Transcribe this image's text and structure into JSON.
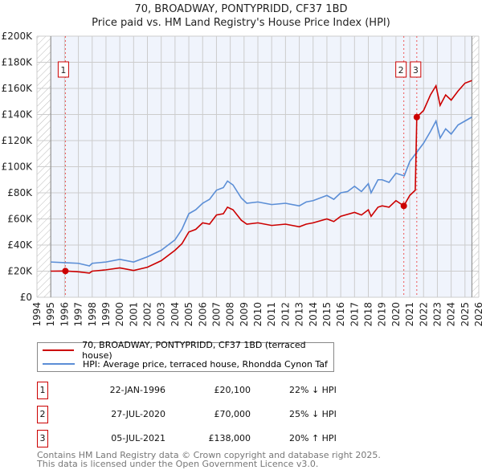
{
  "title": "70, BROADWAY, PONTYPRIDD, CF37 1BD",
  "subtitle": "Price paid vs. HM Land Registry's House Price Index (HPI)",
  "chart_data": {
    "type": "line",
    "xlim": [
      1994,
      2026
    ],
    "ylim": [
      0,
      200000
    ],
    "yticks": [
      {
        "v": 0,
        "label": "£0"
      },
      {
        "v": 20000,
        "label": "£20K"
      },
      {
        "v": 40000,
        "label": "£40K"
      },
      {
        "v": 60000,
        "label": "£60K"
      },
      {
        "v": 80000,
        "label": "£80K"
      },
      {
        "v": 100000,
        "label": "£100K"
      },
      {
        "v": 120000,
        "label": "£120K"
      },
      {
        "v": 140000,
        "label": "£140K"
      },
      {
        "v": 160000,
        "label": "£160K"
      },
      {
        "v": 180000,
        "label": "£180K"
      },
      {
        "v": 200000,
        "label": "£200K"
      }
    ],
    "xticks": [
      "1994",
      "1995",
      "1996",
      "1997",
      "1998",
      "1999",
      "2000",
      "2001",
      "2002",
      "2003",
      "2004",
      "2005",
      "2006",
      "2007",
      "2008",
      "2009",
      "2010",
      "2011",
      "2012",
      "2013",
      "2014",
      "2015",
      "2016",
      "2017",
      "2018",
      "2019",
      "2020",
      "2021",
      "2022",
      "2023",
      "2024",
      "2025",
      "2026"
    ],
    "series": [
      {
        "name": "70, BROADWAY, PONTYPRIDD, CF37 1BD (terraced house)",
        "color": "#cc0000",
        "points": [
          [
            1995,
            20000
          ],
          [
            1996.06,
            20100
          ],
          [
            1997,
            19500
          ],
          [
            1997.8,
            18500
          ],
          [
            1998,
            20000
          ],
          [
            1999,
            21000
          ],
          [
            2000,
            22500
          ],
          [
            2001,
            20500
          ],
          [
            2002,
            23000
          ],
          [
            2003,
            28000
          ],
          [
            2004,
            36000
          ],
          [
            2004.5,
            41000
          ],
          [
            2005,
            50000
          ],
          [
            2005.5,
            52000
          ],
          [
            2006,
            57000
          ],
          [
            2006.5,
            56000
          ],
          [
            2007,
            63000
          ],
          [
            2007.5,
            64000
          ],
          [
            2007.8,
            69000
          ],
          [
            2008.2,
            67000
          ],
          [
            2008.8,
            59000
          ],
          [
            2009.2,
            56000
          ],
          [
            2010,
            57000
          ],
          [
            2011,
            55000
          ],
          [
            2012,
            56000
          ],
          [
            2013,
            54000
          ],
          [
            2013.5,
            56000
          ],
          [
            2014,
            57000
          ],
          [
            2015,
            60000
          ],
          [
            2015.5,
            58000
          ],
          [
            2016,
            62000
          ],
          [
            2017,
            65000
          ],
          [
            2017.5,
            63000
          ],
          [
            2018,
            67000
          ],
          [
            2018.2,
            62000
          ],
          [
            2018.7,
            69000
          ],
          [
            2019,
            70000
          ],
          [
            2019.5,
            69000
          ],
          [
            2020,
            74000
          ],
          [
            2020.57,
            70000
          ],
          [
            2021,
            78000
          ],
          [
            2021.4,
            82000
          ],
          [
            2021.51,
            138000
          ],
          [
            2022,
            143000
          ],
          [
            2022.5,
            155000
          ],
          [
            2022.9,
            162000
          ],
          [
            2023.2,
            147000
          ],
          [
            2023.6,
            155000
          ],
          [
            2024,
            151000
          ],
          [
            2024.5,
            158000
          ],
          [
            2025,
            164000
          ],
          [
            2025.5,
            166000
          ]
        ]
      },
      {
        "name": "HPI: Average price, terraced house, Rhondda Cynon Taf",
        "color": "#5b8ed6",
        "points": [
          [
            1995,
            27000
          ],
          [
            1996,
            26500
          ],
          [
            1997,
            26000
          ],
          [
            1997.8,
            24000
          ],
          [
            1998,
            26000
          ],
          [
            1999,
            27000
          ],
          [
            2000,
            29000
          ],
          [
            2001,
            27000
          ],
          [
            2002,
            31000
          ],
          [
            2003,
            36000
          ],
          [
            2004,
            44000
          ],
          [
            2004.5,
            52000
          ],
          [
            2005,
            64000
          ],
          [
            2005.5,
            67000
          ],
          [
            2006,
            72000
          ],
          [
            2006.5,
            75000
          ],
          [
            2007,
            82000
          ],
          [
            2007.5,
            84000
          ],
          [
            2007.8,
            89000
          ],
          [
            2008.2,
            86000
          ],
          [
            2008.8,
            76000
          ],
          [
            2009.2,
            72000
          ],
          [
            2010,
            73000
          ],
          [
            2011,
            71000
          ],
          [
            2012,
            72000
          ],
          [
            2013,
            70000
          ],
          [
            2013.5,
            73000
          ],
          [
            2014,
            74000
          ],
          [
            2015,
            78000
          ],
          [
            2015.5,
            75000
          ],
          [
            2016,
            80000
          ],
          [
            2016.5,
            81000
          ],
          [
            2017,
            85000
          ],
          [
            2017.5,
            81000
          ],
          [
            2018,
            87000
          ],
          [
            2018.2,
            80000
          ],
          [
            2018.7,
            90000
          ],
          [
            2019,
            90000
          ],
          [
            2019.5,
            88000
          ],
          [
            2020,
            95000
          ],
          [
            2020.6,
            93000
          ],
          [
            2021,
            104000
          ],
          [
            2021.5,
            111000
          ],
          [
            2022,
            118000
          ],
          [
            2022.5,
            127000
          ],
          [
            2022.9,
            135000
          ],
          [
            2023.2,
            122000
          ],
          [
            2023.6,
            129000
          ],
          [
            2024,
            125000
          ],
          [
            2024.5,
            132000
          ],
          [
            2025,
            135000
          ],
          [
            2025.5,
            138000
          ]
        ]
      }
    ],
    "sales": [
      {
        "label": "1",
        "x": 1996.06,
        "y": 20100
      },
      {
        "label": "2",
        "x": 2020.57,
        "y": 70000
      },
      {
        "label": "3",
        "x": 2021.51,
        "y": 138000
      }
    ],
    "data_range": [
      1995,
      2025.5
    ]
  },
  "legend": {
    "red": "70, BROADWAY, PONTYPRIDD, CF37 1BD (terraced house)",
    "blue": "HPI: Average price, terraced house, Rhondda Cynon Taf"
  },
  "sales_table": [
    {
      "num": "1",
      "date": "22-JAN-1996",
      "price": "£20,100",
      "hpi": "22% ↓ HPI"
    },
    {
      "num": "2",
      "date": "27-JUL-2020",
      "price": "£70,000",
      "hpi": "25% ↓ HPI"
    },
    {
      "num": "3",
      "date": "05-JUL-2021",
      "price": "£138,000",
      "hpi": "20% ↑ HPI"
    }
  ],
  "footer": {
    "line1": "Contains HM Land Registry data © Crown copyright and database right 2025.",
    "line2": "This data is licensed under the Open Government Licence v3.0."
  }
}
